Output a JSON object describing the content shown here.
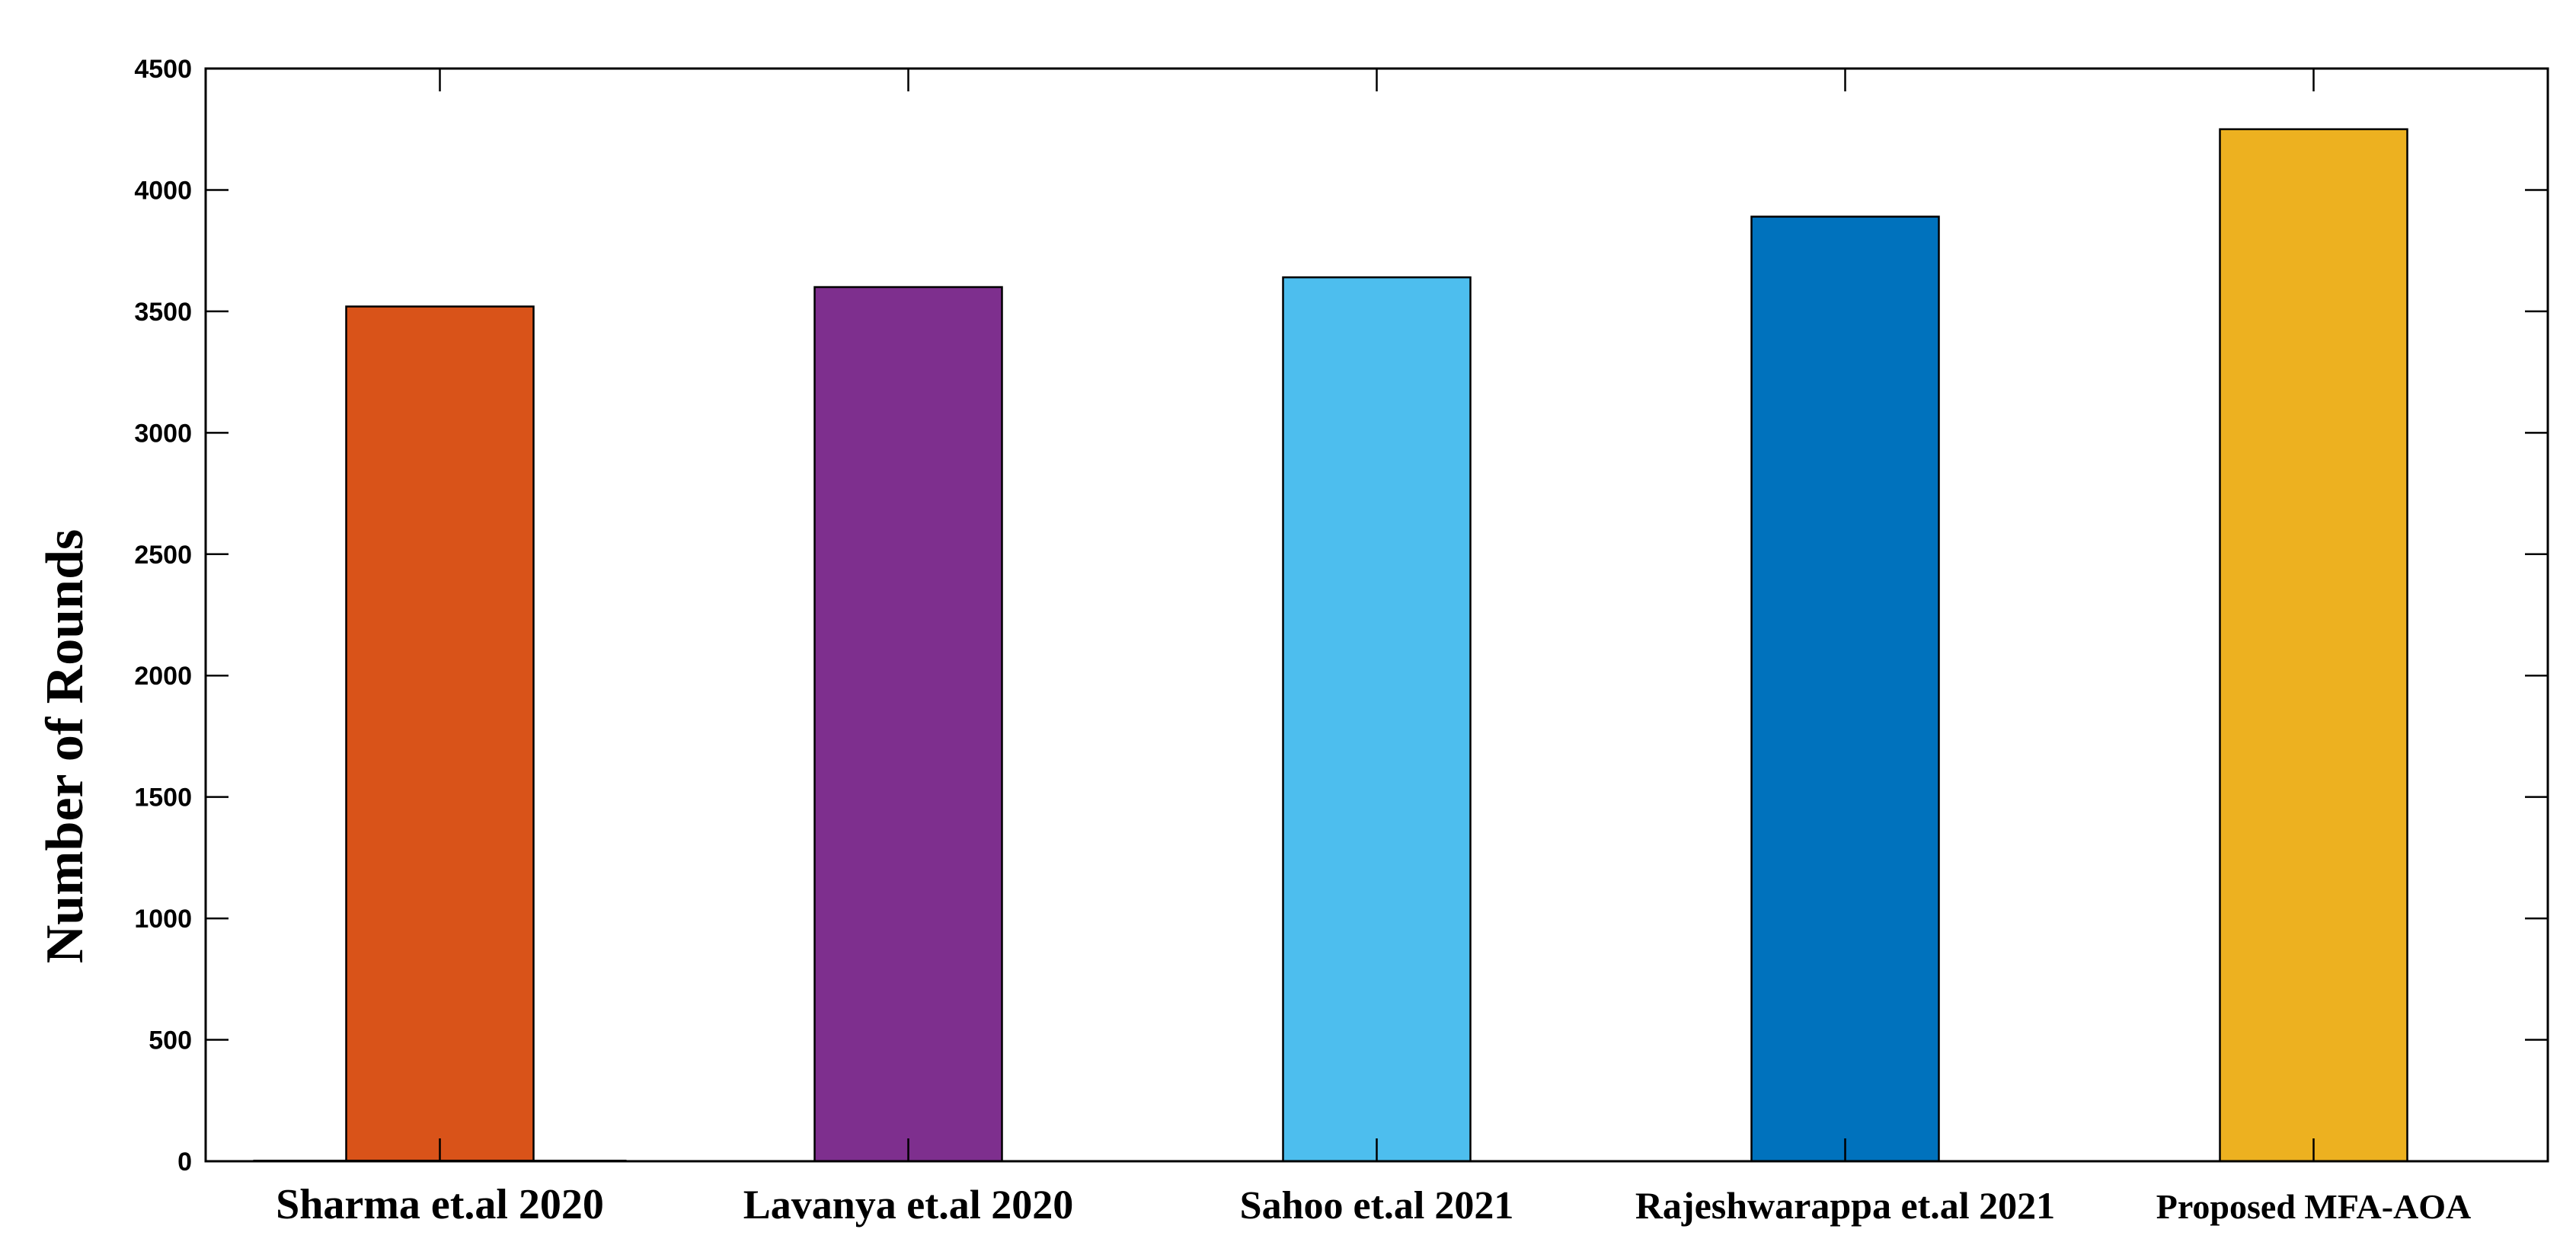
{
  "chart_data": {
    "type": "bar",
    "title": "",
    "xlabel": "",
    "ylabel": "Number of Rounds",
    "categories": [
      "Sharma et.al 2020",
      "Lavanya et.al 2020",
      "Sahoo et.al 2021",
      "Rajeshwarappa et.al 2021",
      "Proposed MFA-AOA"
    ],
    "values": [
      3520,
      3600,
      3640,
      3890,
      4250
    ],
    "colors": [
      "#D95319",
      "#7E2F8E",
      "#4DBEEE",
      "#0072BD",
      "#EDB120"
    ],
    "ylim": [
      0,
      4500
    ],
    "yticks": [
      0,
      500,
      1000,
      1500,
      2000,
      2500,
      3000,
      3500,
      4000,
      4500
    ],
    "grid": false,
    "legend": "none"
  }
}
